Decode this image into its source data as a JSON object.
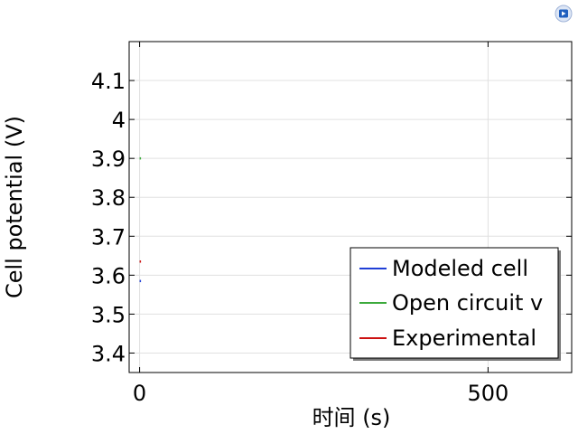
{
  "toolbar": {
    "icon": "comsol-logo-icon"
  },
  "colors": {
    "modeled": "#1f3fd6",
    "open_circuit": "#3caa3c",
    "experimental": "#cc1111",
    "grid": "#e0e0e0"
  },
  "chart_data": {
    "type": "line",
    "title": "",
    "xlabel": "时间 (s)",
    "ylabel": "Cell potential (V)",
    "xlim": [
      -15,
      620
    ],
    "ylim": [
      3.35,
      4.2
    ],
    "x_ticks": [
      0,
      500
    ],
    "x_tick_labels": [
      "0",
      "500"
    ],
    "y_ticks": [
      3.4,
      3.5,
      3.6,
      3.7,
      3.8,
      3.9,
      4.0,
      4.1
    ],
    "y_tick_labels": [
      "3.4",
      "3.5",
      "3.6",
      "3.7",
      "3.8",
      "3.9",
      "4",
      "4.1"
    ],
    "grid": true,
    "legend": {
      "placement": "bottom-right",
      "entries": [
        "Modeled cell",
        "Open circuit v",
        "Experimental"
      ]
    },
    "series": [
      {
        "name": "Modeled cell",
        "x": [
          0,
          2
        ],
        "y": [
          3.585,
          3.585
        ]
      },
      {
        "name": "Open circuit v",
        "x": [
          0,
          2
        ],
        "y": [
          3.9,
          3.9
        ]
      },
      {
        "name": "Experimental",
        "x": [
          0,
          2
        ],
        "y": [
          3.635,
          3.635
        ]
      }
    ]
  }
}
